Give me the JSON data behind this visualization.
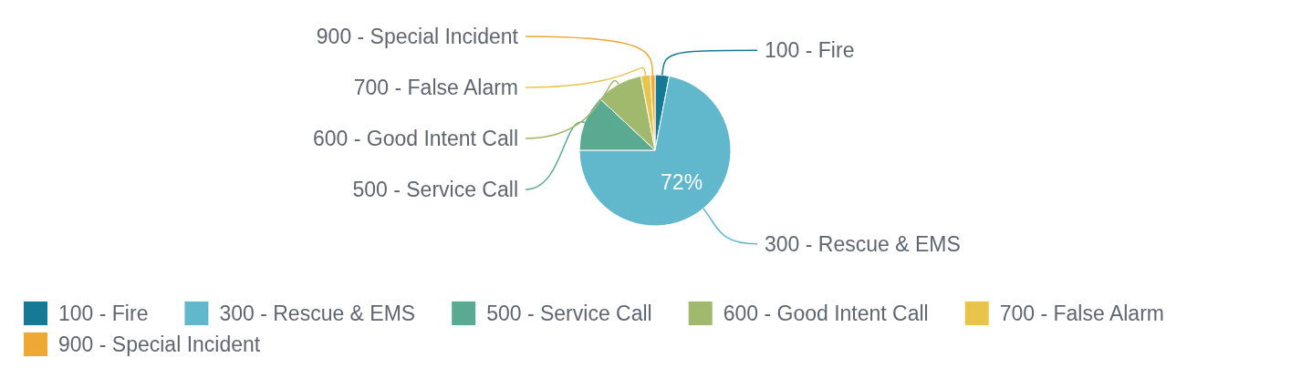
{
  "chart_data": {
    "type": "pie",
    "categories": [
      "100 - Fire",
      "300 - Rescue & EMS",
      "500 - Service Call",
      "600 - Good Intent Call",
      "700 - False Alarm",
      "900 - Special Incident"
    ],
    "values": [
      3,
      72,
      12,
      10,
      2,
      1
    ],
    "colors": [
      "#167a96",
      "#61b7cc",
      "#5aa991",
      "#a1b96d",
      "#e8c54a",
      "#eea935"
    ],
    "value_labels": [
      null,
      "72%",
      null,
      null,
      null,
      null
    ],
    "legend": "bottom"
  }
}
